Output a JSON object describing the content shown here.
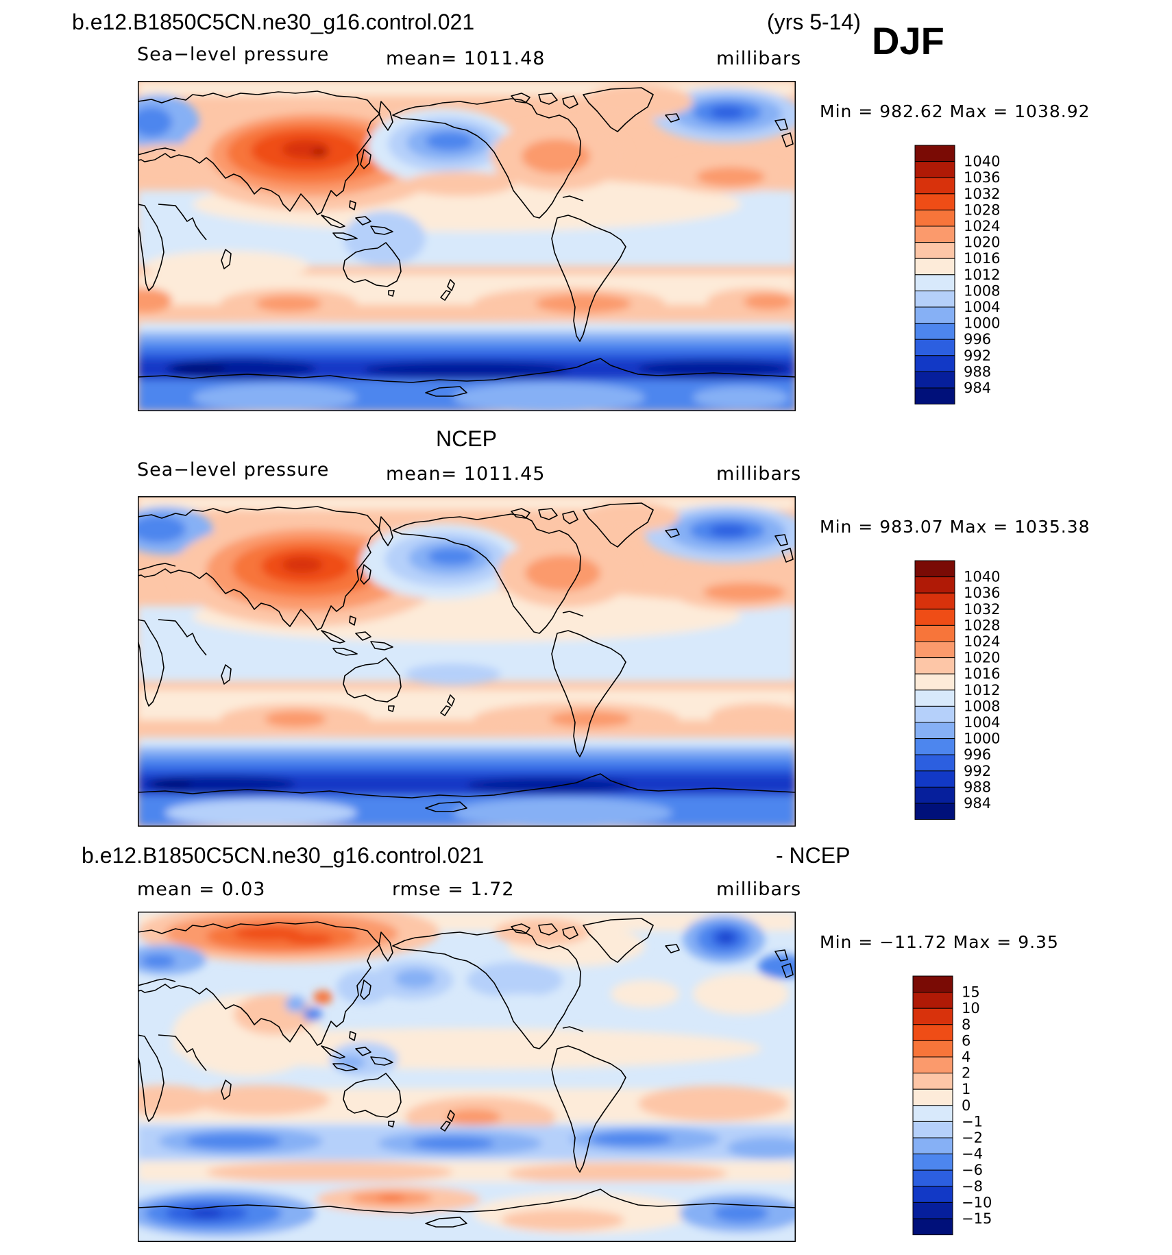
{
  "figure": {
    "season": "DJF",
    "years": "(yrs 5-14)"
  },
  "panels": [
    {
      "id": "model",
      "title": "b.e12.B1850C5CN.ne30_g16.control.021",
      "left_label": "Sea−level  pressure",
      "center_label": "mean=  1011.48",
      "units": "millibars",
      "minmax": "Min  =  982.62  Max  =  1038.92",
      "colorbar": {
        "labels": [
          "1040",
          "1036",
          "1032",
          "1028",
          "1024",
          "1020",
          "1016",
          "1012",
          "1008",
          "1004",
          "1000",
          "996",
          "992",
          "988",
          "984"
        ],
        "colors": [
          "#7a0b05",
          "#b01a06",
          "#d8320c",
          "#ef4d16",
          "#f7753a",
          "#fb9a6c",
          "#fdc6a7",
          "#fdebd9",
          "#d8e9fb",
          "#b5d0fa",
          "#86b0f5",
          "#4d86ee",
          "#2c5fe0",
          "#1239c6",
          "#061f9c",
          "#00107a"
        ]
      }
    },
    {
      "id": "obs",
      "title": "NCEP",
      "left_label": "Sea−level  pressure",
      "center_label": "mean=  1011.45",
      "units": "millibars",
      "minmax": "Min  =  983.07  Max  =  1035.38",
      "colorbar": {
        "labels": [
          "1040",
          "1036",
          "1032",
          "1028",
          "1024",
          "1020",
          "1016",
          "1012",
          "1008",
          "1004",
          "1000",
          "996",
          "992",
          "988",
          "984"
        ],
        "colors": [
          "#7a0b05",
          "#b01a06",
          "#d8320c",
          "#ef4d16",
          "#f7753a",
          "#fb9a6c",
          "#fdc6a7",
          "#fdebd9",
          "#d8e9fb",
          "#b5d0fa",
          "#86b0f5",
          "#4d86ee",
          "#2c5fe0",
          "#1239c6",
          "#061f9c",
          "#00107a"
        ]
      }
    },
    {
      "id": "diff",
      "title": "b.e12.B1850C5CN.ne30_g16.control.021",
      "title_suffix": "- NCEP",
      "left_label": "mean  =     0.03",
      "center_label": "rmse  =     1.72",
      "units": "millibars",
      "minmax": "Min  =  −11.72  Max  =      9.35",
      "colorbar": {
        "labels": [
          "15",
          "10",
          "8",
          "6",
          "4",
          "2",
          "1",
          "0",
          "−1",
          "−2",
          "−4",
          "−6",
          "−8",
          "−10",
          "−15"
        ],
        "colors": [
          "#7a0b05",
          "#b01a06",
          "#d8320c",
          "#ef4d16",
          "#f7753a",
          "#fb9a6c",
          "#fdc6a7",
          "#fdebd9",
          "#d8e9fb",
          "#b5d0fa",
          "#86b0f5",
          "#4d86ee",
          "#2c5fe0",
          "#1239c6",
          "#061f9c",
          "#00107a"
        ]
      }
    }
  ]
}
